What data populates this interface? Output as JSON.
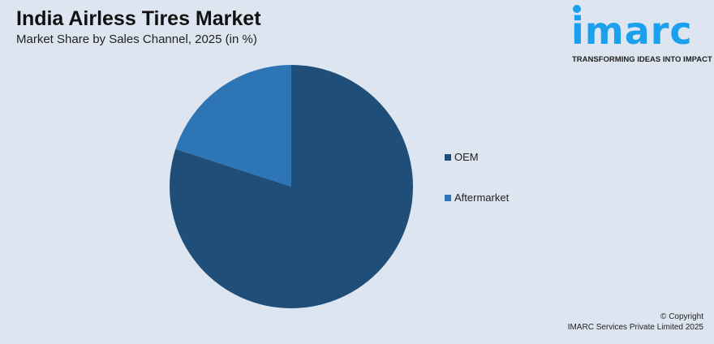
{
  "header": {
    "title": "India Airless Tires Market",
    "subtitle": "Market Share by Sales Channel, 2025 (in %)"
  },
  "logo": {
    "word": "imarc",
    "tagline": "TRANSFORMING IDEAS INTO IMPACT",
    "color": "#1aa0ec"
  },
  "chart_data": {
    "type": "pie",
    "title": "India Airless Tires Market",
    "subtitle": "Market Share by Sales Channel, 2025 (in %)",
    "categories": [
      "OEM",
      "Aftermarket"
    ],
    "values": [
      80,
      20
    ],
    "colors": [
      "#1f4e79",
      "#2e75b6"
    ],
    "legend_position": "right"
  },
  "footer": {
    "copyright": "© Copyright",
    "company": "IMARC Services Private Limited 2025"
  }
}
